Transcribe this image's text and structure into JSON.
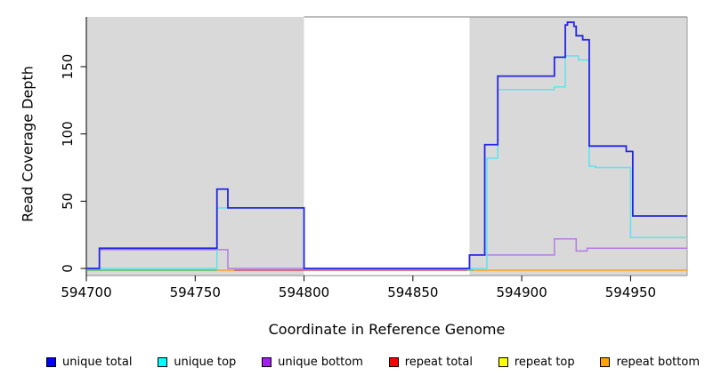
{
  "figure": {
    "background": "#ffffff",
    "panel_bg": "#d9d9d9",
    "axis_color": "#000000",
    "border_color": "#808080"
  },
  "chart_data": {
    "type": "line",
    "subtype": "step",
    "title": "",
    "xlabel": "Coordinate in Reference Genome",
    "ylabel": "Read Coverage Depth",
    "xlim": [
      594700,
      594976
    ],
    "ylim": [
      0,
      187
    ],
    "x_ticks": [
      594700,
      594750,
      594800,
      594850,
      594900,
      594950
    ],
    "y_ticks": [
      0,
      50,
      100,
      150
    ],
    "grid": false,
    "legend_position": "bottom",
    "shaded_regions": [
      {
        "from": 594700,
        "to": 594800,
        "color": "#d9d9d9"
      },
      {
        "from": 594876,
        "to": 594976,
        "color": "#d9d9d9"
      }
    ],
    "series": [
      {
        "name": "unique total",
        "color": "#2525e6",
        "points": [
          [
            594700,
            0
          ],
          [
            594706,
            15
          ],
          [
            594760,
            59
          ],
          [
            594765,
            45
          ],
          [
            594800,
            0
          ],
          [
            594876,
            10
          ],
          [
            594883,
            92
          ],
          [
            594889,
            143
          ],
          [
            594915,
            157
          ],
          [
            594920,
            181
          ],
          [
            594921,
            183
          ],
          [
            594924,
            180
          ],
          [
            594925,
            173
          ],
          [
            594928,
            170
          ],
          [
            594931,
            91
          ],
          [
            594948,
            87
          ],
          [
            594951,
            39
          ]
        ]
      },
      {
        "name": "unique top",
        "color": "#5fe2ef",
        "points": [
          [
            594700,
            0
          ],
          [
            594760,
            45
          ],
          [
            594800,
            0
          ],
          [
            594884,
            82
          ],
          [
            594889,
            133
          ],
          [
            594915,
            135
          ],
          [
            594920,
            158
          ],
          [
            594926,
            155
          ],
          [
            594931,
            76
          ],
          [
            594934,
            75
          ],
          [
            594950,
            23
          ]
        ]
      },
      {
        "name": "unique bottom",
        "color": "#b27de0",
        "points": [
          [
            594700,
            0
          ],
          [
            594706,
            14
          ],
          [
            594765,
            0
          ],
          [
            594876,
            10
          ],
          [
            594915,
            22
          ],
          [
            594925,
            13
          ],
          [
            594930,
            15
          ]
        ]
      },
      {
        "name": "repeat total",
        "color": "#cc4e63",
        "points": [
          [
            594700,
            0
          ]
        ]
      },
      {
        "name": "repeat top",
        "color": "#e6e622",
        "points": [
          [
            594700,
            0
          ]
        ]
      },
      {
        "name": "repeat bottom",
        "color": "#ff9d1e",
        "points": [
          [
            594700,
            0
          ]
        ]
      }
    ],
    "baseline_segments": [
      {
        "from": 594700,
        "to": 594760,
        "color": "#5cb85c"
      },
      {
        "from": 594760,
        "to": 594768,
        "color": "#ff9d1e"
      },
      {
        "from": 594768,
        "to": 594800,
        "color": "#cc4e63"
      },
      {
        "from": 594800,
        "to": 594875,
        "color": "#cc4e63"
      },
      {
        "from": 594875,
        "to": 594878,
        "color": "#5cb85c"
      },
      {
        "from": 594878,
        "to": 594976,
        "color": "#ff9d1e"
      }
    ]
  },
  "legend": {
    "items": [
      {
        "label": "unique total",
        "color": "#0000ff"
      },
      {
        "label": "unique top",
        "color": "#00ffff"
      },
      {
        "label": "unique bottom",
        "color": "#a020f0"
      },
      {
        "label": "repeat total",
        "color": "#ff0000"
      },
      {
        "label": "repeat top",
        "color": "#ffff00"
      },
      {
        "label": "repeat bottom",
        "color": "#ffa500"
      }
    ]
  }
}
